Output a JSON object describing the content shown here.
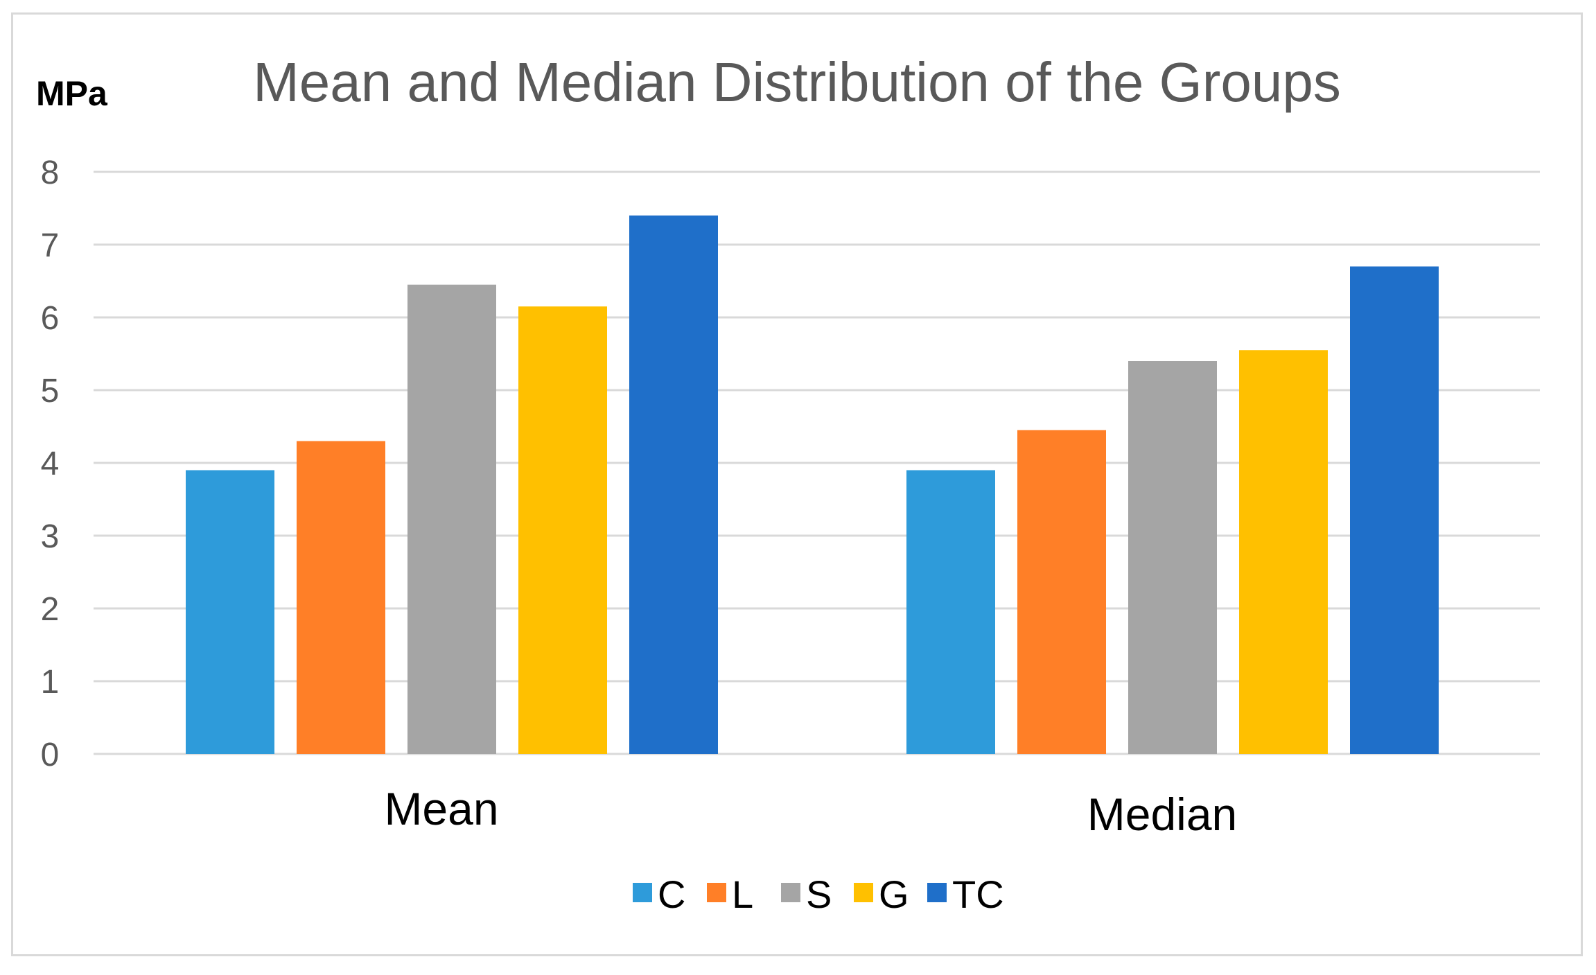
{
  "chart_data": {
    "type": "bar",
    "title": "Mean and Median Distribution of the Groups",
    "ylabel": "MPa",
    "xlabel": "",
    "categories": [
      "Mean",
      "Median"
    ],
    "ylim": [
      0,
      8
    ],
    "yticks": [
      0,
      1,
      2,
      3,
      4,
      5,
      6,
      7,
      8
    ],
    "grid": true,
    "legend_position": "bottom",
    "series": [
      {
        "name": "C",
        "color": "#2E9BDA",
        "values": [
          3.9,
          3.9
        ]
      },
      {
        "name": "L",
        "color": "#FF7F27",
        "values": [
          4.3,
          4.45
        ]
      },
      {
        "name": "S",
        "color": "#A5A5A5",
        "values": [
          6.45,
          5.4
        ]
      },
      {
        "name": "G",
        "color": "#FFC000",
        "values": [
          6.15,
          5.55
        ]
      },
      {
        "name": "TC",
        "color": "#1F6FC9",
        "values": [
          7.4,
          6.7
        ]
      }
    ]
  }
}
